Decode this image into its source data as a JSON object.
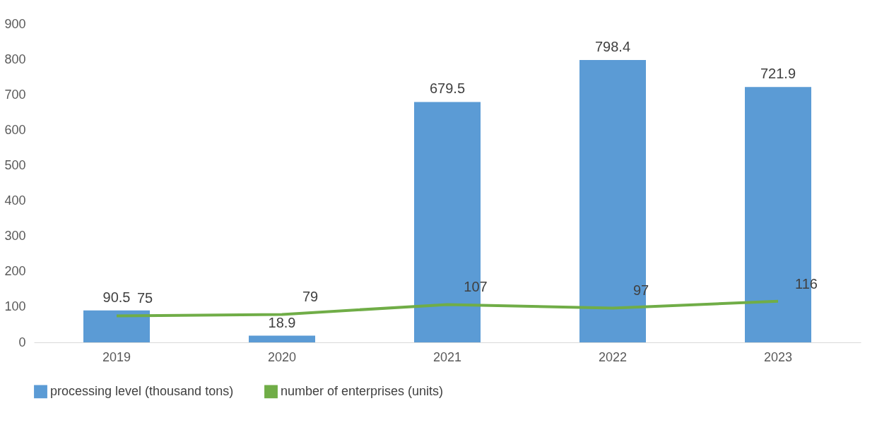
{
  "chart_data": {
    "type": "bar",
    "categories": [
      "2019",
      "2020",
      "2021",
      "2022",
      "2023"
    ],
    "series": [
      {
        "name": "processing level (thousand tons)",
        "color": "#5b9bd5",
        "values": [
          90.5,
          18.9,
          679.5,
          798.4,
          721.9
        ]
      },
      {
        "name": "number of enterprises (units)",
        "color": "#70ad47",
        "type": "line",
        "values": [
          75,
          79,
          107,
          97,
          116
        ]
      }
    ],
    "ylim": [
      0,
      900
    ],
    "yticks": [
      0,
      100,
      200,
      300,
      400,
      500,
      600,
      700,
      800,
      900
    ],
    "data_labels": true,
    "grid": false,
    "legend": "bottom",
    "marker": "none",
    "line_style": "solid"
  }
}
